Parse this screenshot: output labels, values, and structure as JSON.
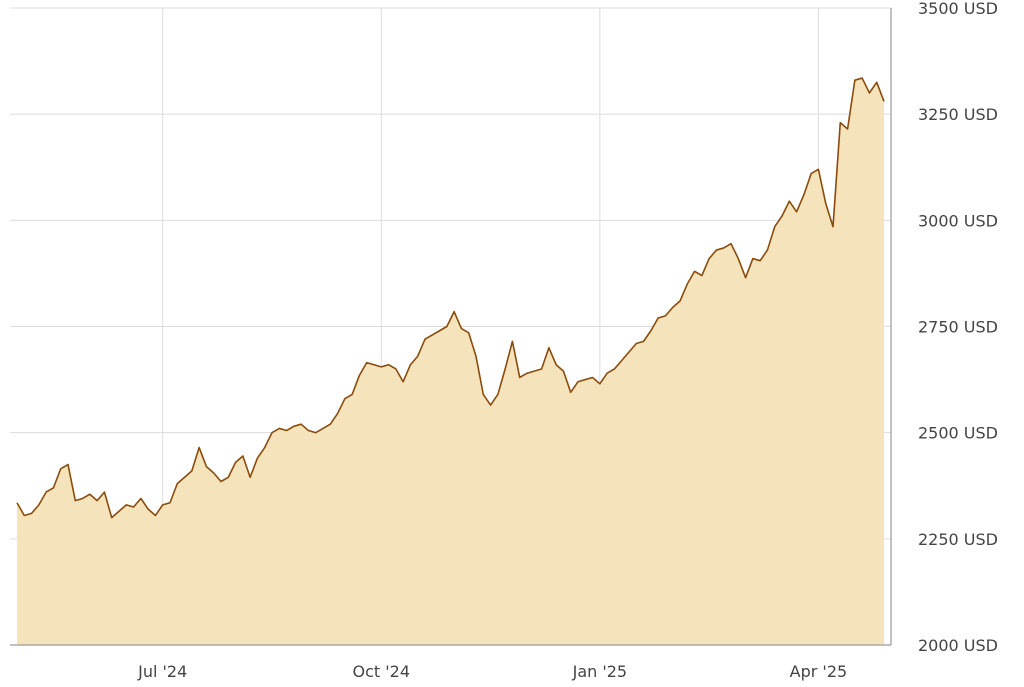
{
  "chart_data": {
    "type": "area",
    "categories": [
      null,
      null,
      null,
      null,
      null,
      null,
      null,
      null,
      null,
      null,
      null,
      null,
      null,
      null,
      null,
      null,
      null,
      null,
      null,
      null,
      "Jul '24",
      null,
      null,
      null,
      null,
      null,
      null,
      null,
      null,
      null,
      null,
      null,
      null,
      null,
      null,
      null,
      null,
      null,
      null,
      null,
      null,
      null,
      null,
      null,
      null,
      null,
      null,
      null,
      null,
      null,
      "Oct '24",
      null,
      null,
      null,
      null,
      null,
      null,
      null,
      null,
      null,
      null,
      null,
      null,
      null,
      null,
      null,
      null,
      null,
      null,
      null,
      null,
      null,
      null,
      null,
      null,
      null,
      null,
      null,
      null,
      null,
      "Jan '25",
      null,
      null,
      null,
      null,
      null,
      null,
      null,
      null,
      null,
      null,
      null,
      null,
      null,
      null,
      null,
      null,
      null,
      null,
      null,
      null,
      null,
      null,
      null,
      null,
      null,
      null,
      null,
      null,
      null,
      "Apr '25",
      null,
      null,
      null,
      null,
      null,
      null,
      null,
      null,
      null
    ],
    "values": [
      2335,
      2305,
      2310,
      2330,
      2360,
      2370,
      2415,
      2425,
      2340,
      2345,
      2355,
      2340,
      2360,
      2300,
      2315,
      2330,
      2325,
      2345,
      2320,
      2305,
      2330,
      2335,
      2380,
      2395,
      2410,
      2465,
      2420,
      2405,
      2385,
      2395,
      2430,
      2445,
      2395,
      2440,
      2465,
      2500,
      2510,
      2505,
      2515,
      2520,
      2505,
      2500,
      2510,
      2520,
      2545,
      2580,
      2590,
      2635,
      2665,
      2660,
      2655,
      2660,
      2650,
      2620,
      2660,
      2680,
      2720,
      2730,
      2740,
      2750,
      2785,
      2745,
      2735,
      2680,
      2590,
      2565,
      2590,
      2650,
      2715,
      2630,
      2640,
      2645,
      2650,
      2700,
      2660,
      2645,
      2595,
      2620,
      2625,
      2630,
      2615,
      2640,
      2650,
      2670,
      2690,
      2710,
      2715,
      2740,
      2770,
      2775,
      2795,
      2810,
      2850,
      2880,
      2870,
      2910,
      2930,
      2935,
      2945,
      2910,
      2865,
      2910,
      2905,
      2930,
      2985,
      3010,
      3045,
      3020,
      3060,
      3110,
      3120,
      3040,
      2985,
      3230,
      3215,
      3330,
      3335,
      3300,
      3325,
      3280
    ],
    "line_color": "#8a4b0c",
    "fill_color": "#f5e4bb",
    "ylim": [
      2000,
      3500
    ],
    "yticks": [
      {
        "value": 2000,
        "label": "2000 USD"
      },
      {
        "value": 2250,
        "label": "2250 USD"
      },
      {
        "value": 2500,
        "label": "2500 USD"
      },
      {
        "value": 2750,
        "label": "2750 USD"
      },
      {
        "value": 3000,
        "label": "3000 USD"
      },
      {
        "value": 3250,
        "label": "3250 USD"
      },
      {
        "value": 3500,
        "label": "3500 USD"
      }
    ],
    "grid": true
  }
}
